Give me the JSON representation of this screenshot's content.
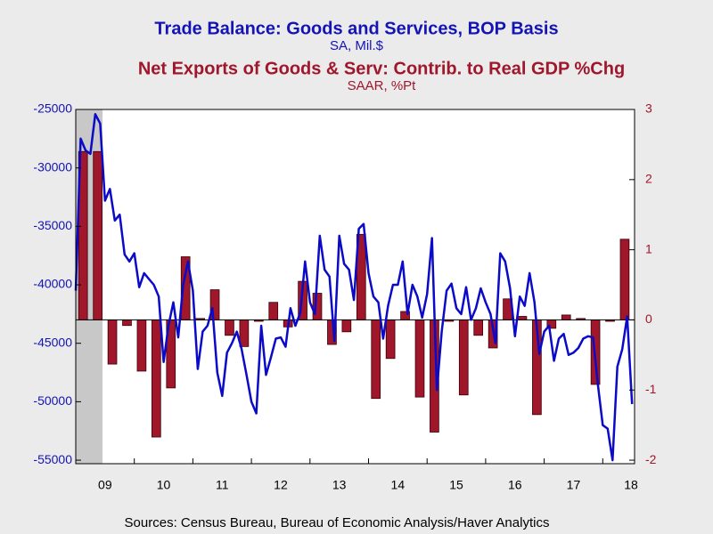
{
  "chart_data": {
    "type": "bar-line",
    "title": "Trade Balance: Goods and Services, BOP Basis",
    "subtitle": "SA, Mil.$",
    "title2": "Net Exports of Goods & Serv: Contrib. to Real GDP %Chg",
    "subtitle2": "SAAR, %Pt",
    "source": "Sources:  Census Bureau, Bureau of Economic Analysis/Haver Analytics",
    "xticks": [
      "09",
      "10",
      "11",
      "12",
      "13",
      "14",
      "15",
      "16",
      "17",
      "18"
    ],
    "ylim": [
      -55300,
      -25000
    ],
    "yticks": [
      -25000,
      -30000,
      -35000,
      -40000,
      -45000,
      -50000,
      -55000
    ],
    "y2lim": [
      -2.05,
      3
    ],
    "y2ticks": [
      3,
      2,
      1,
      0,
      -1,
      -2
    ],
    "series": [
      {
        "name": "Trade Balance: Goods and Services, BOP Basis",
        "type": "line",
        "color": "#0a0ac8",
        "values": [
          -40500,
          -27500,
          -28500,
          -28800,
          -25400,
          -26200,
          -32800,
          -31800,
          -34500,
          -34000,
          -37400,
          -38000,
          -37300,
          -40200,
          -39000,
          -39500,
          -40000,
          -41000,
          -46600,
          -43500,
          -41500,
          -44500,
          -40000,
          -38000,
          -40500,
          -47200,
          -44000,
          -43500,
          -42000,
          -47500,
          -49500,
          -45800,
          -45000,
          -44000,
          -45500,
          -47700,
          -50000,
          -51000,
          -43500,
          -47700,
          -46200,
          -44600,
          -44500,
          -45300,
          -42000,
          -43500,
          -42400,
          -38000,
          -41500,
          -42500,
          -35800,
          -38700,
          -39300,
          -44800,
          -35800,
          -38200,
          -38700,
          -41300,
          -35200,
          -34800,
          -39000,
          -41000,
          -41500,
          -44600,
          -41800,
          -40000,
          -40000,
          -38000,
          -42500,
          -40000,
          -41000,
          -42800,
          -40800,
          -36000,
          -49000,
          -44000,
          -40500,
          -39900,
          -42000,
          -42500,
          -40200,
          -43000,
          -42000,
          -40300,
          -41500,
          -42500,
          -45000,
          -37300,
          -38000,
          -40300,
          -44400,
          -41000,
          -41800,
          -39000,
          -41500,
          -45900,
          -44000,
          -43500,
          -46500,
          -44600,
          -44200,
          -46000,
          -45800,
          -45400,
          -44600,
          -44400,
          -44500,
          -48500,
          -52000,
          -52300,
          -55000,
          -47000,
          -45500,
          -42700,
          -50200
        ]
      },
      {
        "name": "Net Exports of Goods & Serv: Contrib. to Real GDP %Chg",
        "type": "bar",
        "axis": "y2",
        "color": "#a0162b",
        "values": [
          2.4,
          2.4,
          -0.63,
          -0.08,
          -0.73,
          -1.67,
          -0.97,
          0.9,
          0.02,
          0.43,
          -0.22,
          -0.38,
          -0.02,
          0.25,
          -0.1,
          0.55,
          0.38,
          -0.35,
          -0.17,
          1.22,
          -1.12,
          -0.55,
          0.12,
          -1.1,
          -1.6,
          -0.02,
          -1.07,
          -0.22,
          -0.4,
          0.3,
          0.05,
          -1.35,
          -0.12,
          0.07,
          0.02,
          -0.92,
          -0.02,
          1.15
        ]
      }
    ]
  }
}
